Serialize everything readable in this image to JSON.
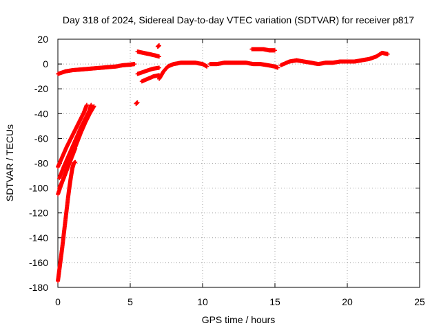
{
  "chart_data": {
    "type": "scatter",
    "title": "Day 318 of 2024, Sidereal Day-to-day VTEC variation (SDTVAR) for receiver p817",
    "xlabel": "GPS time / hours",
    "ylabel": "SDTVAR / TECUs",
    "xlim": [
      0,
      25
    ],
    "ylim": [
      -180,
      20
    ],
    "xticks": [
      0,
      5,
      10,
      15,
      20,
      25
    ],
    "yticks": [
      -180,
      -160,
      -140,
      -120,
      -100,
      -80,
      -60,
      -40,
      -20,
      0,
      20
    ],
    "xtick_labels": [
      "0",
      "5",
      "10",
      "15",
      "20",
      "25"
    ],
    "ytick_labels": [
      "-180",
      "-160",
      "-140",
      "-120",
      "-100",
      "-80",
      "-60",
      "-40",
      "-20",
      "0",
      "20"
    ],
    "grid": true,
    "marker": "+",
    "color": "#ff0000",
    "series": [
      {
        "name": "near-zero baseline 1",
        "points": [
          [
            0.0,
            -8
          ],
          [
            0.5,
            -6
          ],
          [
            1.0,
            -5
          ],
          [
            1.5,
            -4.5
          ],
          [
            2.0,
            -4
          ],
          [
            2.5,
            -3.5
          ],
          [
            3.0,
            -3
          ],
          [
            3.5,
            -2.5
          ],
          [
            4.0,
            -2
          ],
          [
            4.5,
            -1
          ],
          [
            5.0,
            -0.5
          ],
          [
            5.3,
            0
          ]
        ]
      },
      {
        "name": "near-zero baseline 2",
        "points": [
          [
            7.0,
            -12
          ],
          [
            7.3,
            -6
          ],
          [
            7.6,
            -2
          ],
          [
            8.0,
            0
          ],
          [
            8.5,
            1
          ],
          [
            9.0,
            1
          ],
          [
            9.5,
            1
          ],
          [
            10.0,
            0
          ],
          [
            10.3,
            -2
          ]
        ]
      },
      {
        "name": "near-zero baseline 3",
        "points": [
          [
            10.5,
            0
          ],
          [
            11.0,
            0
          ],
          [
            11.5,
            1
          ],
          [
            12.0,
            1
          ],
          [
            12.5,
            1
          ],
          [
            13.0,
            1
          ],
          [
            13.5,
            0
          ],
          [
            14.0,
            0
          ],
          [
            14.5,
            -1
          ],
          [
            15.0,
            -2
          ],
          [
            15.2,
            -3
          ]
        ]
      },
      {
        "name": "near-zero baseline 4",
        "points": [
          [
            15.4,
            -1
          ],
          [
            16.0,
            2
          ],
          [
            16.5,
            3
          ],
          [
            17.0,
            2
          ],
          [
            17.5,
            1
          ],
          [
            18.0,
            0
          ],
          [
            18.5,
            1
          ],
          [
            19.0,
            1
          ],
          [
            19.5,
            2
          ],
          [
            20.0,
            2
          ],
          [
            20.5,
            2
          ],
          [
            21.0,
            3
          ],
          [
            21.5,
            4
          ],
          [
            22.0,
            6
          ],
          [
            22.4,
            9
          ],
          [
            22.8,
            8
          ]
        ]
      },
      {
        "name": "segment near 6 h upper",
        "points": [
          [
            5.5,
            10
          ],
          [
            5.9,
            9
          ],
          [
            6.3,
            8
          ],
          [
            6.7,
            7
          ],
          [
            7.0,
            6
          ]
        ]
      },
      {
        "name": "segment near 6 h lower",
        "points": [
          [
            5.5,
            -8
          ],
          [
            6.0,
            -6
          ],
          [
            6.5,
            -4
          ],
          [
            7.0,
            -3
          ]
        ]
      },
      {
        "name": "segment near 6 h bottom",
        "points": [
          [
            5.8,
            -14
          ],
          [
            6.2,
            -12
          ],
          [
            6.6,
            -10
          ],
          [
            7.0,
            -9
          ]
        ]
      },
      {
        "name": "isolated near 7 h",
        "points": [
          [
            6.9,
            14
          ],
          [
            7.0,
            15
          ]
        ]
      },
      {
        "name": "isolated near 5.5 h",
        "points": [
          [
            5.4,
            -32
          ],
          [
            5.5,
            -31
          ]
        ]
      },
      {
        "name": "segment near 14 h",
        "points": [
          [
            13.4,
            12
          ],
          [
            13.8,
            12
          ],
          [
            14.2,
            12
          ],
          [
            14.6,
            11
          ],
          [
            15.0,
            11
          ]
        ]
      },
      {
        "name": "descending arc A",
        "points": [
          [
            0.0,
            -83
          ],
          [
            0.3,
            -75
          ],
          [
            0.6,
            -67
          ],
          [
            0.9,
            -60
          ],
          [
            1.2,
            -53
          ],
          [
            1.5,
            -46
          ],
          [
            1.8,
            -39
          ],
          [
            2.0,
            -33
          ]
        ]
      },
      {
        "name": "descending arc B",
        "points": [
          [
            0.1,
            -92
          ],
          [
            0.4,
            -83
          ],
          [
            0.7,
            -75
          ],
          [
            1.0,
            -67
          ],
          [
            1.3,
            -59
          ],
          [
            1.6,
            -51
          ],
          [
            1.9,
            -44
          ],
          [
            2.2,
            -37
          ],
          [
            2.3,
            -33
          ]
        ]
      },
      {
        "name": "descending arc C",
        "points": [
          [
            0.1,
            -100
          ],
          [
            0.4,
            -92
          ],
          [
            0.7,
            -82
          ],
          [
            1.0,
            -73
          ],
          [
            1.3,
            -64
          ],
          [
            1.6,
            -55
          ],
          [
            1.9,
            -47
          ],
          [
            2.2,
            -40
          ],
          [
            2.5,
            -34
          ]
        ]
      },
      {
        "name": "descending arc D",
        "points": [
          [
            0.0,
            -105
          ],
          [
            0.3,
            -95
          ],
          [
            0.6,
            -86
          ],
          [
            0.9,
            -77
          ],
          [
            1.2,
            -68
          ]
        ]
      },
      {
        "name": "descending arc E",
        "points": [
          [
            0.0,
            -175
          ],
          [
            0.1,
            -166
          ],
          [
            0.2,
            -157
          ],
          [
            0.3,
            -148
          ],
          [
            0.4,
            -138
          ],
          [
            0.5,
            -128
          ],
          [
            0.6,
            -118
          ],
          [
            0.7,
            -108
          ],
          [
            0.8,
            -99
          ],
          [
            0.9,
            -91
          ],
          [
            1.0,
            -84
          ],
          [
            1.1,
            -80
          ],
          [
            1.2,
            -79
          ]
        ]
      }
    ]
  }
}
